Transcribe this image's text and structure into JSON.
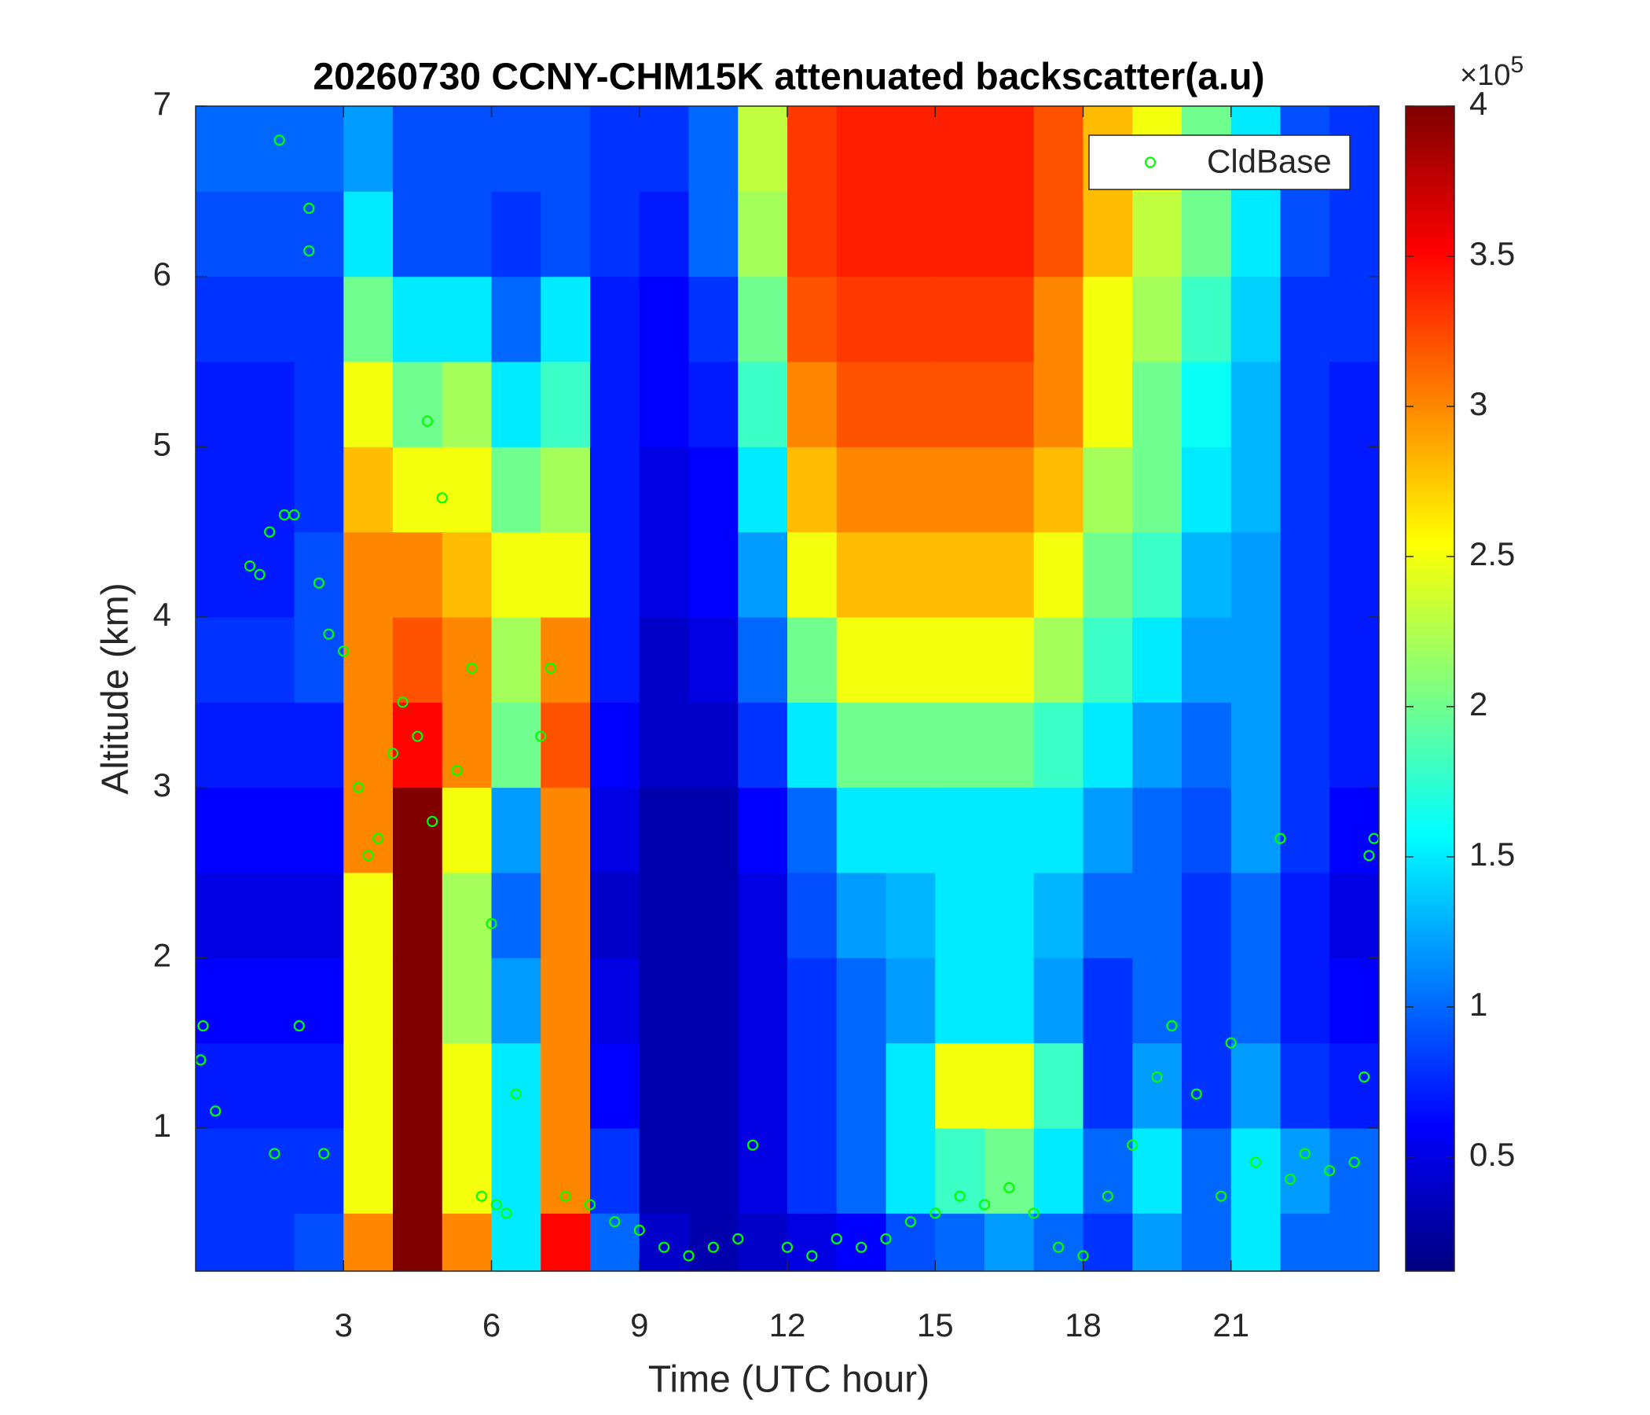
{
  "chart_data": {
    "type": "heatmap",
    "title": "20260730 CCNY-CHM15K attenuated backscatter(a.u)",
    "xlabel": "Time (UTC hour)",
    "ylabel": "Altitude (km)",
    "xlim": [
      0,
      24
    ],
    "xticks": [
      3,
      6,
      9,
      12,
      15,
      18,
      21
    ],
    "ylim": [
      0.16,
      7
    ],
    "yticks": [
      1,
      2,
      3,
      4,
      5,
      6,
      7
    ],
    "x_bins": [
      0,
      1,
      2,
      3,
      4,
      5,
      6,
      7,
      8,
      9,
      10,
      11,
      12,
      13,
      14,
      15,
      16,
      17,
      18,
      19,
      20,
      21,
      22,
      23,
      24
    ],
    "y_bins": [
      0.16,
      0.5,
      1,
      1.5,
      2,
      2.5,
      3,
      3.5,
      4,
      4.5,
      5,
      5.5,
      6,
      6.5,
      7
    ],
    "values": [
      [
        0.8,
        0.8,
        0.9,
        3.0,
        4,
        3.0,
        1.5,
        3.5,
        1.0,
        0.4,
        0.3,
        0.4,
        0.5,
        0.6,
        0.9,
        1.0,
        1.2,
        1.0,
        0.8,
        1.2,
        1.0,
        1.5,
        1.0,
        1.0
      ],
      [
        0.8,
        0.8,
        0.8,
        2.5,
        4,
        2.5,
        1.5,
        3.0,
        0.8,
        0.3,
        0.3,
        0.5,
        0.8,
        1.0,
        1.5,
        1.8,
        2.0,
        1.5,
        1.0,
        1.5,
        1.0,
        1.5,
        1.2,
        1.0
      ],
      [
        0.7,
        0.7,
        0.7,
        2.5,
        4,
        2.5,
        1.5,
        3.0,
        0.6,
        0.3,
        0.3,
        0.5,
        0.8,
        1.0,
        1.5,
        2.5,
        2.5,
        1.8,
        0.8,
        1.2,
        0.8,
        1.2,
        0.8,
        0.7
      ],
      [
        0.6,
        0.6,
        0.6,
        2.5,
        4,
        2.2,
        1.2,
        3.0,
        0.5,
        0.3,
        0.3,
        0.5,
        0.8,
        1.0,
        1.2,
        1.5,
        1.5,
        1.2,
        0.8,
        1.0,
        0.8,
        1.0,
        0.7,
        0.6
      ],
      [
        0.5,
        0.5,
        0.5,
        2.5,
        4,
        2.2,
        1.0,
        3.0,
        0.4,
        0.3,
        0.3,
        0.5,
        0.9,
        1.2,
        1.3,
        1.5,
        1.5,
        1.3,
        1.0,
        1.0,
        0.8,
        1.0,
        0.7,
        0.5
      ],
      [
        0.6,
        0.6,
        0.6,
        3.0,
        4,
        2.5,
        1.2,
        3.0,
        0.5,
        0.3,
        0.3,
        0.6,
        1.0,
        1.5,
        1.5,
        1.5,
        1.5,
        1.5,
        1.2,
        1.0,
        0.9,
        1.2,
        0.8,
        0.6
      ],
      [
        0.7,
        0.7,
        0.7,
        3.0,
        3.5,
        3.0,
        2.0,
        3.2,
        0.6,
        0.4,
        0.4,
        0.8,
        1.5,
        2.0,
        2.0,
        2.0,
        2.0,
        1.8,
        1.5,
        1.2,
        1.0,
        1.2,
        0.8,
        0.7
      ],
      [
        0.8,
        0.8,
        0.9,
        3.0,
        3.2,
        3.0,
        2.2,
        3.0,
        0.7,
        0.4,
        0.5,
        1.0,
        2.0,
        2.5,
        2.5,
        2.5,
        2.5,
        2.2,
        1.8,
        1.5,
        1.2,
        1.2,
        0.8,
        0.7
      ],
      [
        0.7,
        0.7,
        0.9,
        3.0,
        3.0,
        2.8,
        2.5,
        2.5,
        0.7,
        0.5,
        0.6,
        1.2,
        2.5,
        2.8,
        2.8,
        2.8,
        2.8,
        2.5,
        2.0,
        1.8,
        1.3,
        1.2,
        0.8,
        0.7
      ],
      [
        0.7,
        0.7,
        0.8,
        2.8,
        2.5,
        2.5,
        2.0,
        2.2,
        0.7,
        0.5,
        0.6,
        1.5,
        2.8,
        3.0,
        3.0,
        3.0,
        3.0,
        2.8,
        2.2,
        2.0,
        1.5,
        1.3,
        0.8,
        0.7
      ],
      [
        0.7,
        0.7,
        0.8,
        2.5,
        2.0,
        2.2,
        1.5,
        1.8,
        0.7,
        0.6,
        0.7,
        1.8,
        3.0,
        3.2,
        3.2,
        3.2,
        3.2,
        3.0,
        2.5,
        2.0,
        1.6,
        1.3,
        0.8,
        0.7
      ],
      [
        0.8,
        0.8,
        0.8,
        2.0,
        1.5,
        1.5,
        1.0,
        1.5,
        0.7,
        0.6,
        0.8,
        2.0,
        3.2,
        3.3,
        3.3,
        3.3,
        3.3,
        3.0,
        2.5,
        2.2,
        1.8,
        1.4,
        0.8,
        0.8
      ],
      [
        0.9,
        0.9,
        0.9,
        1.5,
        0.9,
        0.9,
        0.8,
        0.9,
        0.8,
        0.7,
        1.0,
        2.2,
        3.3,
        3.4,
        3.4,
        3.4,
        3.4,
        3.2,
        2.8,
        2.3,
        2.0,
        1.5,
        0.9,
        0.8
      ],
      [
        1.0,
        1.0,
        1.0,
        1.2,
        0.9,
        0.9,
        0.9,
        0.9,
        0.8,
        0.8,
        1.0,
        2.3,
        3.3,
        3.4,
        3.4,
        3.4,
        3.4,
        3.2,
        2.8,
        2.5,
        2.0,
        1.5,
        0.9,
        0.8
      ]
    ],
    "colormap": "jet",
    "clim": [
      0.12,
      4
    ],
    "colorbar_ticks": [
      0.5,
      1,
      1.5,
      2,
      2.5,
      3,
      3.5,
      4
    ],
    "colorbar_multiplier": {
      "base": "×10",
      "exponent": "5"
    },
    "legend": "upper right",
    "overlay": {
      "type": "scatter",
      "name": "CldBase",
      "color": "#00ff00",
      "x": [
        0.1,
        0.15,
        0.4,
        1.1,
        1.3,
        1.5,
        1.6,
        1.7,
        1.8,
        2.0,
        2.1,
        2.3,
        2.3,
        2.5,
        2.6,
        2.7,
        3.0,
        3.3,
        3.5,
        3.7,
        4.0,
        4.2,
        4.5,
        4.7,
        4.8,
        5.0,
        5.3,
        5.6,
        5.8,
        6.0,
        6.1,
        6.3,
        6.5,
        7.0,
        7.2,
        7.5,
        8.0,
        8.5,
        9.0,
        9.5,
        10.0,
        10.5,
        11.0,
        11.3,
        12.0,
        12.5,
        13.0,
        13.5,
        14.0,
        14.5,
        15.0,
        15.5,
        16.0,
        16.5,
        17.0,
        17.5,
        18.0,
        18.5,
        19.0,
        19.5,
        19.8,
        20.3,
        20.8,
        21.0,
        21.5,
        22.0,
        22.2,
        22.5,
        23.0,
        23.5,
        23.7,
        23.8,
        23.9
      ],
      "values": [
        1.4,
        1.6,
        1.1,
        4.3,
        4.25,
        4.5,
        0.85,
        6.8,
        4.6,
        4.6,
        1.6,
        6.4,
        6.15,
        4.2,
        0.85,
        3.9,
        3.8,
        3.0,
        2.6,
        2.7,
        3.2,
        3.5,
        3.3,
        5.15,
        2.8,
        4.7,
        3.1,
        3.7,
        0.6,
        2.2,
        0.55,
        0.5,
        1.2,
        3.3,
        3.7,
        0.6,
        0.55,
        0.45,
        0.4,
        0.3,
        0.25,
        0.3,
        0.35,
        0.9,
        0.3,
        0.25,
        0.35,
        0.3,
        0.35,
        0.45,
        0.5,
        0.6,
        0.55,
        0.65,
        0.5,
        0.3,
        0.25,
        0.6,
        0.9,
        1.3,
        1.6,
        1.2,
        0.6,
        1.5,
        0.8,
        2.7,
        0.7,
        0.85,
        0.75,
        0.8,
        1.3,
        2.6,
        2.7
      ]
    }
  }
}
